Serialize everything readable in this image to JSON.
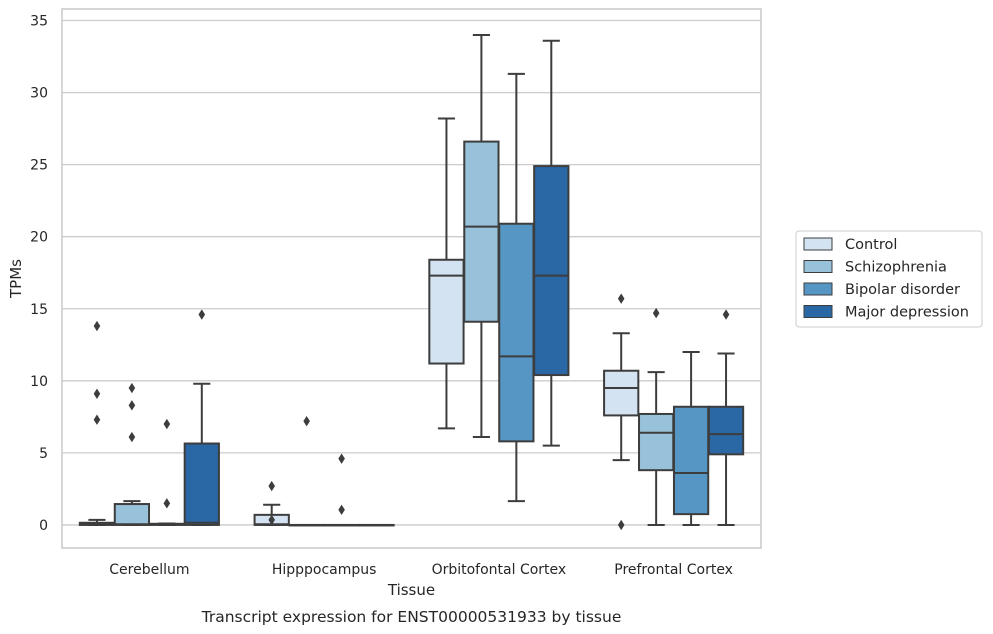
{
  "chart_data": {
    "type": "box",
    "caption": "Transcript expression for ENST00000531933 by tissue",
    "xlabel": "Tissue",
    "ylabel": "TPMs",
    "ylim": [
      -1.6,
      35.8
    ],
    "yticks": [
      0,
      5,
      10,
      15,
      20,
      25,
      30,
      35
    ],
    "grid": "horizontal",
    "legend_position": "right",
    "categories": [
      "Cerebellum",
      "Hipppocampus",
      "Orbitofontal Cortex",
      "Prefrontal Cortex"
    ],
    "series": [
      {
        "name": "Control",
        "color": "#d4e3f2",
        "boxes": [
          {
            "whislo": 0,
            "q1": 0,
            "med": 0.05,
            "q3": 0.15,
            "whishi": 0.35,
            "fliers": [
              13.8,
              9.1,
              7.3
            ]
          },
          {
            "whislo": 0,
            "q1": 0,
            "med": 0.05,
            "q3": 0.7,
            "whishi": 1.4,
            "fliers": [
              2.7,
              0.35
            ]
          },
          {
            "whislo": 6.7,
            "q1": 11.2,
            "med": 17.3,
            "q3": 18.4,
            "whishi": 28.2,
            "fliers": []
          },
          {
            "whislo": 4.5,
            "q1": 7.6,
            "med": 9.5,
            "q3": 10.7,
            "whishi": 13.3,
            "fliers": [
              15.7,
              0
            ]
          }
        ]
      },
      {
        "name": "Schizophrenia",
        "color": "#98c1da",
        "boxes": [
          {
            "whislo": 0,
            "q1": 0,
            "med": 0.05,
            "q3": 1.45,
            "whishi": 1.65,
            "fliers": [
              9.5,
              8.3,
              6.1
            ]
          },
          {
            "whislo": 0,
            "q1": 0,
            "med": 0,
            "q3": 0,
            "whishi": 0,
            "fliers": [
              7.2
            ]
          },
          {
            "whislo": 6.1,
            "q1": 14.1,
            "med": 20.7,
            "q3": 26.6,
            "whishi": 34.0,
            "fliers": []
          },
          {
            "whislo": 0,
            "q1": 3.8,
            "med": 6.4,
            "q3": 7.7,
            "whishi": 10.6,
            "fliers": [
              14.7
            ]
          }
        ]
      },
      {
        "name": "Bipolar disorder",
        "color": "#5596c5",
        "boxes": [
          {
            "whislo": 0,
            "q1": 0,
            "med": 0.03,
            "q3": 0.08,
            "whishi": 0.1,
            "fliers": [
              7.0,
              1.5
            ]
          },
          {
            "whislo": 0,
            "q1": 0,
            "med": 0,
            "q3": 0,
            "whishi": 0,
            "fliers": [
              4.6,
              1.05
            ]
          },
          {
            "whislo": 1.65,
            "q1": 5.8,
            "med": 11.7,
            "q3": 20.9,
            "whishi": 31.3,
            "fliers": []
          },
          {
            "whislo": 0,
            "q1": 0.75,
            "med": 3.6,
            "q3": 8.2,
            "whishi": 12.0,
            "fliers": []
          }
        ]
      },
      {
        "name": "Major depression",
        "color": "#2a67a5",
        "boxes": [
          {
            "whislo": 0,
            "q1": 0,
            "med": 0.15,
            "q3": 5.65,
            "whishi": 9.8,
            "fliers": [
              14.6
            ]
          },
          {
            "whislo": 0,
            "q1": 0,
            "med": 0,
            "q3": 0,
            "whishi": 0,
            "fliers": []
          },
          {
            "whislo": 5.5,
            "q1": 10.4,
            "med": 17.3,
            "q3": 24.9,
            "whishi": 33.6,
            "fliers": []
          },
          {
            "whislo": 0,
            "q1": 4.9,
            "med": 6.3,
            "q3": 8.2,
            "whishi": 11.9,
            "fliers": [
              14.6
            ]
          }
        ]
      }
    ]
  }
}
